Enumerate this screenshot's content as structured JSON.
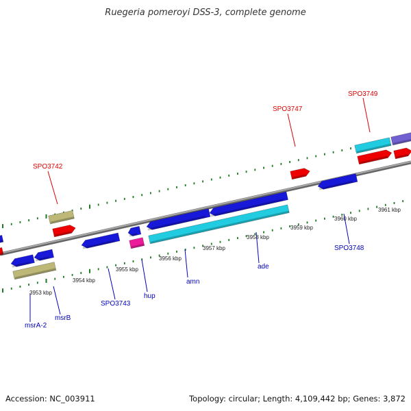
{
  "title": "Ruegeria pomeroyi DSS-3, complete genome",
  "footer": {
    "accession": "Accession: NC_003911",
    "topology": "Topology: circular; Length: 4,109,442 bp; Genes: 3,872"
  },
  "colors": {
    "forward_label": "#dd0000",
    "reverse_label": "#0000bb",
    "backbone": "#888888",
    "tick": "#1e7a1e",
    "red": "#ee0000",
    "blue": "#1818d8",
    "cyan": "#22cce0",
    "tan": "#bdb878",
    "magenta": "#ee1a9c",
    "purple": "#7060d0"
  },
  "tick_labels": [
    "3953 kbp",
    "3954 kbp",
    "3955 kbp",
    "3956 kbp",
    "3957 kbp",
    "3958 kbp",
    "3959 kbp",
    "3960 kbp",
    "3961 kbp"
  ],
  "gene_labels_top": [
    "SPO3742",
    "SPO3747",
    "SPO3749"
  ],
  "gene_labels_bottom": [
    "msrA-2",
    "msrB",
    "SPO3743",
    "hup",
    "amn",
    "ade",
    "SPO3748"
  ]
}
